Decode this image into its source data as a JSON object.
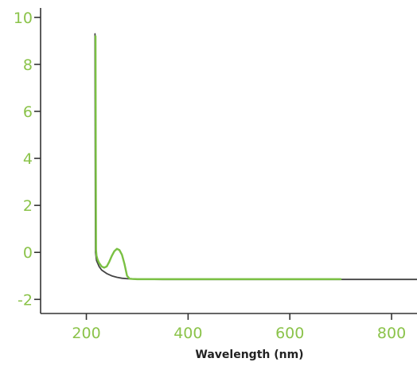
{
  "colors": {
    "tick_label": "#8bc34a",
    "axis_line": "#333333",
    "axis_title": "#222222"
  },
  "chart_data": {
    "type": "line",
    "title": "",
    "xlabel": "Wavelength (nm)",
    "ylabel": "",
    "xlim": [
      110,
      850
    ],
    "ylim": [
      -2.6,
      10.4
    ],
    "x_ticks": [
      200,
      400,
      600,
      800
    ],
    "y_ticks": [
      -2,
      0,
      2,
      4,
      6,
      8,
      10
    ],
    "x_tick_labels": [
      "200",
      "400",
      "600",
      "800"
    ],
    "y_tick_labels": [
      "-2",
      "0",
      "2",
      "4",
      "6",
      "8",
      "10"
    ],
    "grid": false,
    "legend": "none",
    "series": [
      {
        "color": "#444444",
        "x": [
          217,
          217.5,
          218,
          220,
          225,
          230,
          240,
          250,
          260,
          270,
          280,
          290,
          300,
          350,
          400,
          500,
          600,
          700,
          800,
          850
        ],
        "y": [
          9.3,
          4.0,
          0.0,
          -0.35,
          -0.6,
          -0.75,
          -0.9,
          -1.0,
          -1.06,
          -1.1,
          -1.12,
          -1.13,
          -1.14,
          -1.15,
          -1.15,
          -1.15,
          -1.15,
          -1.15,
          -1.15,
          -1.15
        ]
      },
      {
        "color": "#7ac043",
        "x": [
          218,
          218.5,
          219,
          220,
          222,
          225,
          230,
          235,
          240,
          245,
          250,
          255,
          260,
          265,
          270,
          275,
          280,
          285,
          290,
          300,
          400,
          500,
          600,
          700
        ],
        "y": [
          9.2,
          4.0,
          0.1,
          -0.15,
          -0.3,
          -0.45,
          -0.6,
          -0.65,
          -0.6,
          -0.4,
          -0.15,
          0.05,
          0.15,
          0.1,
          -0.1,
          -0.5,
          -1.0,
          -1.12,
          -1.13,
          -1.14,
          -1.14,
          -1.14,
          -1.14,
          -1.14
        ]
      }
    ]
  }
}
